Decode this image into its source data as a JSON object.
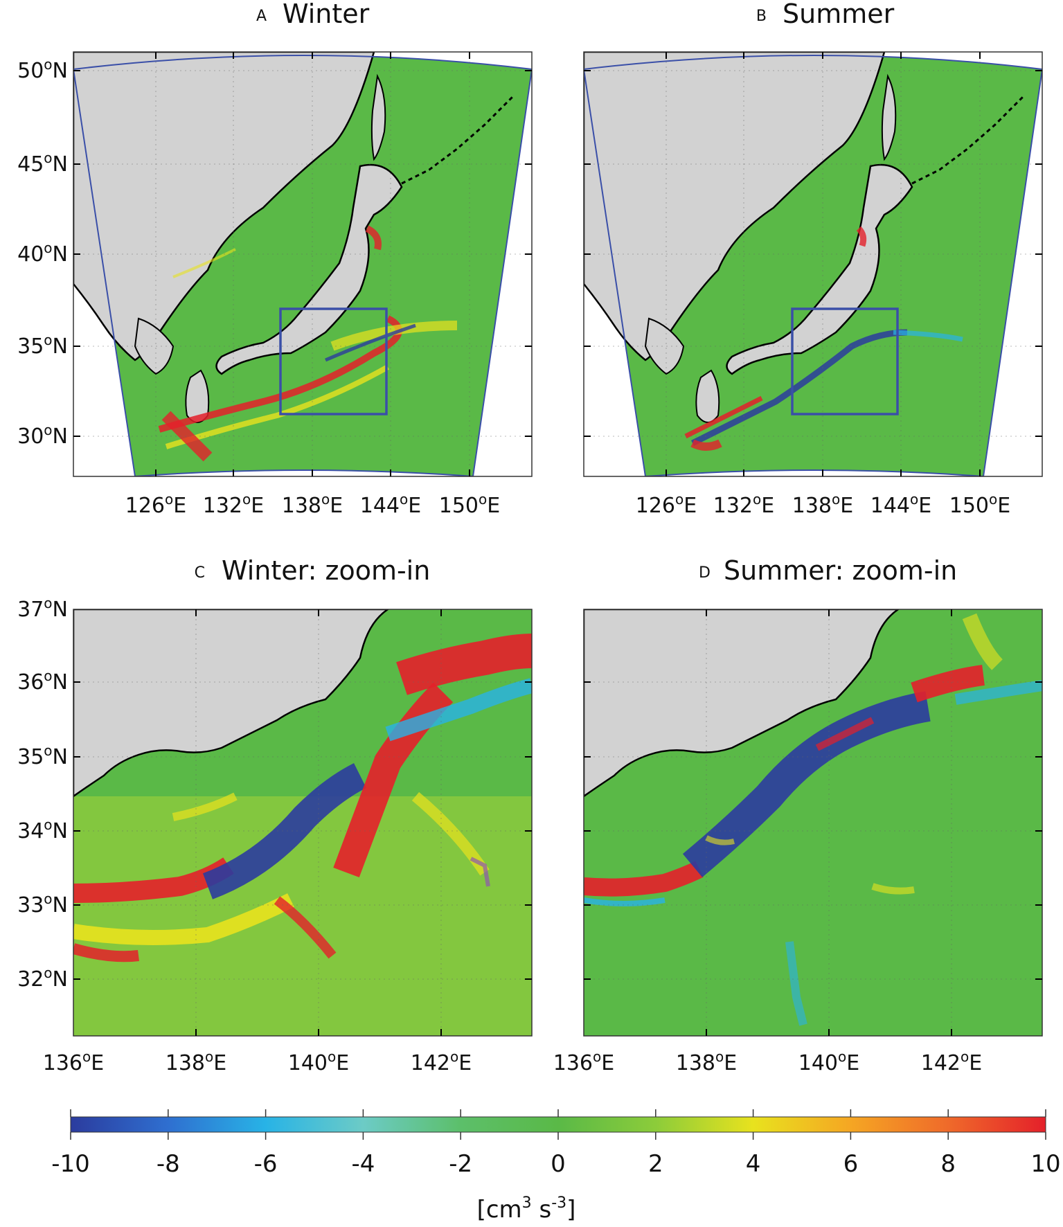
{
  "panels": [
    {
      "letter": "A",
      "title": "Winter",
      "lat_labels": [
        "50",
        "45",
        "40",
        "35",
        "30"
      ],
      "lon_labels": [
        "126",
        "132",
        "138",
        "144",
        "150"
      ],
      "lat_suffix": "N",
      "lon_suffix": "E"
    },
    {
      "letter": "B",
      "title": "Summer",
      "lat_labels": [],
      "lon_labels": [
        "126",
        "132",
        "138",
        "144",
        "150"
      ],
      "lat_suffix": "N",
      "lon_suffix": "E"
    },
    {
      "letter": "C",
      "title": "Winter: zoom-in",
      "lat_labels": [
        "37",
        "36",
        "35",
        "34",
        "33",
        "32"
      ],
      "lon_labels": [
        "136",
        "138",
        "140",
        "142"
      ],
      "lat_suffix": "N",
      "lon_suffix": "E"
    },
    {
      "letter": "D",
      "title": "Summer: zoom-in",
      "lat_labels": [],
      "lon_labels": [
        "136",
        "138",
        "140",
        "142"
      ],
      "lat_suffix": "N",
      "lon_suffix": "E"
    }
  ],
  "colorbar": {
    "ticks": [
      "-10",
      "-8",
      "-6",
      "-4",
      "-2",
      "0",
      "2",
      "4",
      "6",
      "8",
      "10"
    ],
    "unit_base": "[cm",
    "unit_sup1": "3",
    "unit_mid": " s",
    "unit_sup2": "-3",
    "unit_end": "]",
    "colors": [
      "#2b3c9e",
      "#2f6fd0",
      "#28b3e6",
      "#6ccbc6",
      "#5cbf6a",
      "#5ab947",
      "#8ccc3a",
      "#e8e21e",
      "#f5a623",
      "#ef6a2a",
      "#e4202a"
    ]
  },
  "map_colors": {
    "land": "#d2d2d2",
    "ocean": "#5ab947",
    "outside": "#ffffff",
    "domain_border": "#3a4fa8",
    "box": "#3a4fa8"
  }
}
